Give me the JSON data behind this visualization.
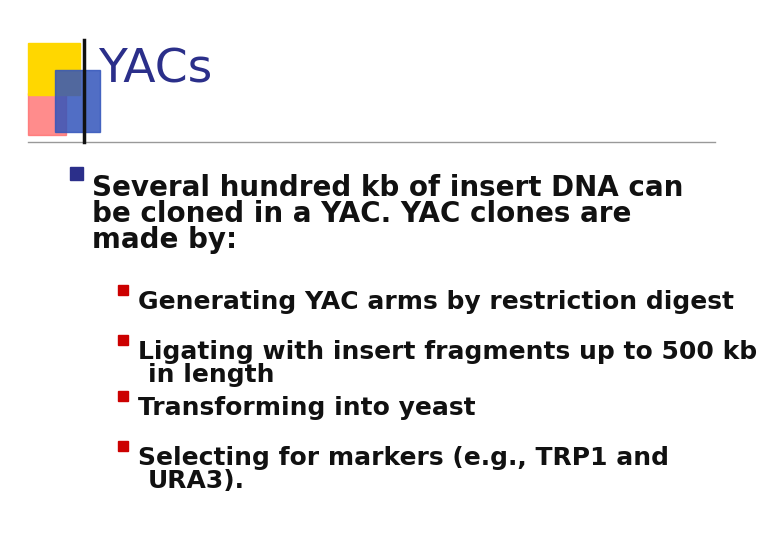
{
  "title": "YACs",
  "title_color": "#2B2F8A",
  "background_color": "#FFFFFF",
  "bullet1_line1": "Several hundred kb of insert DNA can",
  "bullet1_line2": "be cloned in a YAC. YAC clones are",
  "bullet1_line3": "made by:",
  "sub_bullets": [
    "Generating YAC arms by restriction digest",
    [
      "Ligating with insert fragments up to 500 kb",
      "in length"
    ],
    "Transforming into yeast",
    [
      "Selecting for markers (e.g., TRP1 and",
      "URA3)."
    ]
  ],
  "bullet_color": "#2B2F8A",
  "sub_bullet_color": "#CC0000",
  "text_color": "#111111",
  "title_fontsize": 34,
  "bullet_fontsize": 20,
  "sub_bullet_fontsize": 18,
  "line_color": "#999999",
  "logo_yellow": "#FFD700",
  "logo_red_pink": "#FF6666",
  "logo_blue": "#3355BB",
  "logo_dark_blue": "#1A1A8A"
}
